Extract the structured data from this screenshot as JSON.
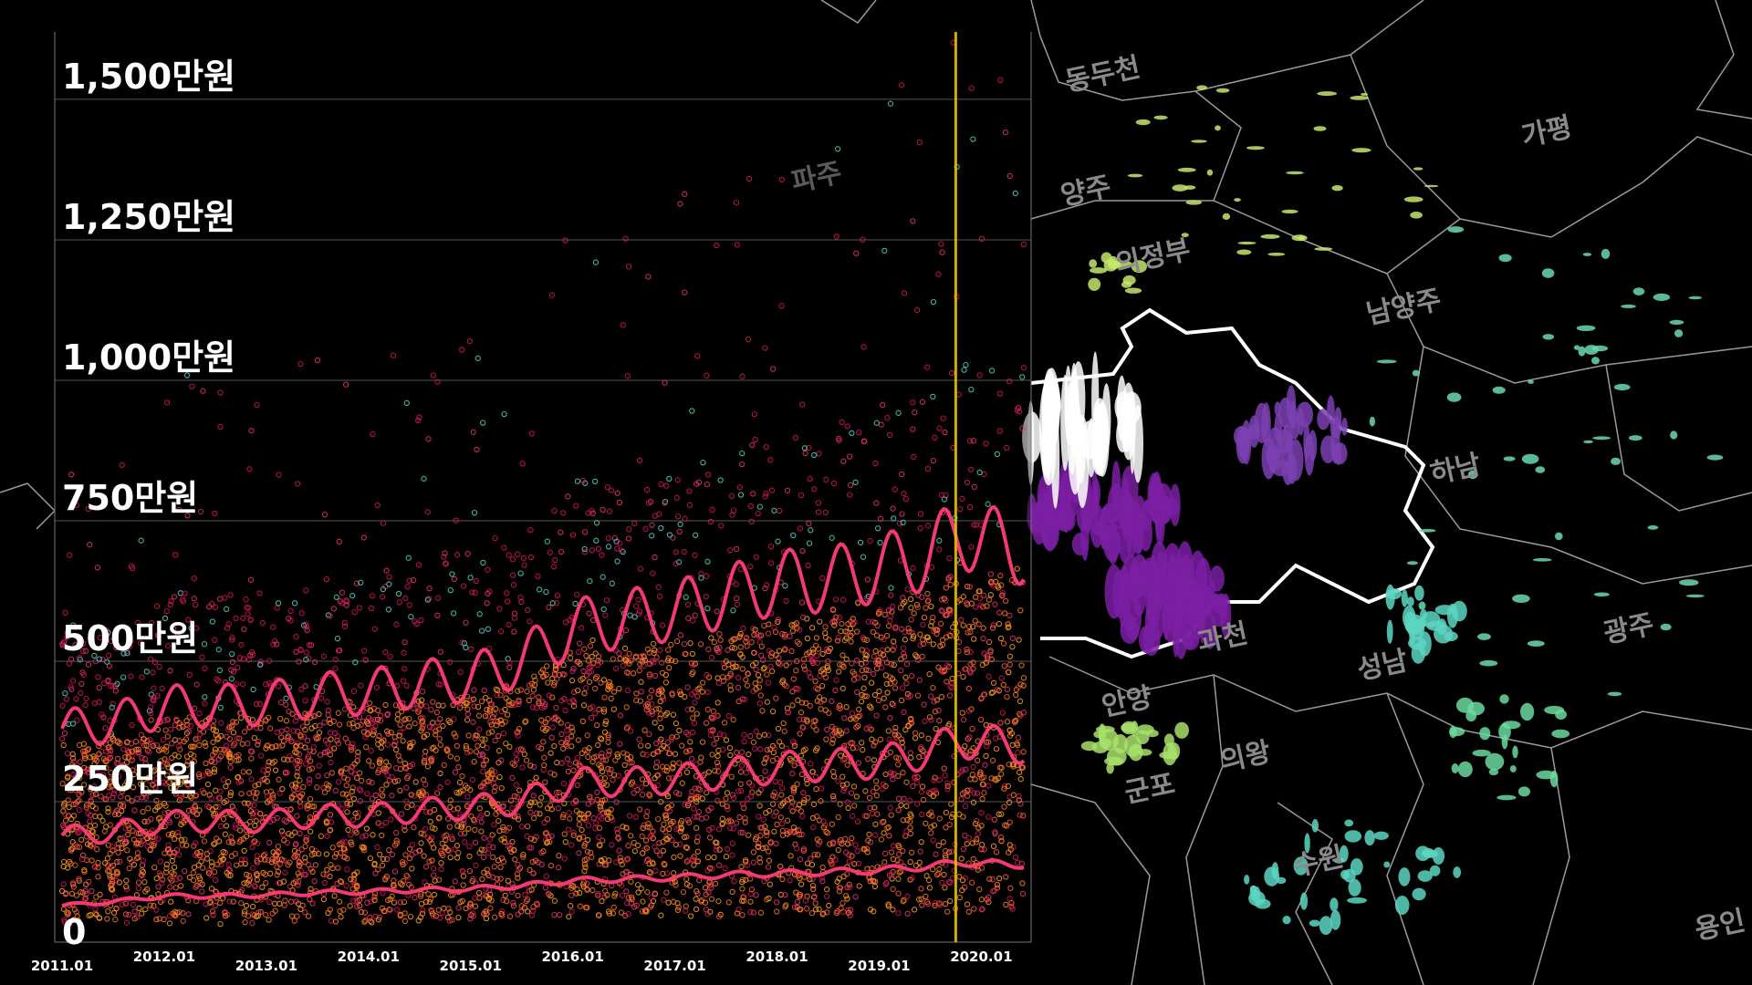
{
  "chart_data": {
    "type": "scatter",
    "title": "",
    "xlabel": "",
    "ylabel": "",
    "x_ticks": [
      "2011.01",
      "2012.01",
      "2013.01",
      "2014.01",
      "2015.01",
      "2016.01",
      "2017.01",
      "2018.01",
      "2019.01",
      "2020.01"
    ],
    "y_ticks": [
      {
        "value": 0,
        "label": "0"
      },
      {
        "value": 250,
        "label": "250만원"
      },
      {
        "value": 500,
        "label": "500만원"
      },
      {
        "value": 750,
        "label": "750만원"
      },
      {
        "value": 1000,
        "label": "1,000만원"
      },
      {
        "value": 1250,
        "label": "1,250만원"
      },
      {
        "value": 1500,
        "label": "1,500만원"
      }
    ],
    "ylim": [
      0,
      1620
    ],
    "xlim": [
      "2011.01",
      "2020.06"
    ],
    "grid": true,
    "highlight_x": "2019.10",
    "series": [
      {
        "values": [
          [
            2011.0,
            380
          ],
          [
            2011.5,
            390
          ],
          [
            2012.0,
            420
          ],
          [
            2012.5,
            420
          ],
          [
            2013.0,
            425
          ],
          [
            2013.5,
            440
          ],
          [
            2014.0,
            445
          ],
          [
            2014.5,
            460
          ],
          [
            2015.0,
            470
          ],
          [
            2015.5,
            500
          ],
          [
            2016.0,
            560
          ],
          [
            2016.5,
            575
          ],
          [
            2017.0,
            590
          ],
          [
            2017.5,
            615
          ],
          [
            2018.0,
            640
          ],
          [
            2018.5,
            645
          ],
          [
            2019.0,
            665
          ],
          [
            2019.5,
            690
          ],
          [
            2019.8,
            730
          ],
          [
            2020.3,
            700
          ]
        ]
      },
      {
        "values": [
          [
            2011.0,
            190
          ],
          [
            2011.5,
            195
          ],
          [
            2012.0,
            215
          ],
          [
            2012.5,
            215
          ],
          [
            2013.0,
            215
          ],
          [
            2013.5,
            225
          ],
          [
            2014.0,
            225
          ],
          [
            2014.5,
            235
          ],
          [
            2015.0,
            240
          ],
          [
            2015.5,
            250
          ],
          [
            2016.0,
            285
          ],
          [
            2016.5,
            285
          ],
          [
            2017.0,
            290
          ],
          [
            2017.5,
            300
          ],
          [
            2018.0,
            310
          ],
          [
            2018.5,
            315
          ],
          [
            2019.0,
            320
          ],
          [
            2019.5,
            340
          ],
          [
            2019.8,
            360
          ],
          [
            2020.3,
            350
          ]
        ]
      },
      {
        "values": [
          [
            2011.0,
            65
          ],
          [
            2011.5,
            72
          ],
          [
            2012.0,
            82
          ],
          [
            2012.5,
            82
          ],
          [
            2013.0,
            84
          ],
          [
            2013.5,
            88
          ],
          [
            2014.0,
            90
          ],
          [
            2014.5,
            93
          ],
          [
            2015.0,
            95
          ],
          [
            2015.5,
            100
          ],
          [
            2016.0,
            110
          ],
          [
            2016.5,
            112
          ],
          [
            2017.0,
            115
          ],
          [
            2017.5,
            120
          ],
          [
            2018.0,
            122
          ],
          [
            2018.5,
            125
          ],
          [
            2019.0,
            128
          ],
          [
            2019.5,
            135
          ],
          [
            2019.8,
            142
          ],
          [
            2020.3,
            138
          ]
        ]
      }
    ],
    "point_colors": [
      "#ff9f1c",
      "#ff8a1a",
      "#f7751e",
      "#e8326a",
      "#d4145a",
      "#ff5a36",
      "#4fd1c5"
    ],
    "line_color": "#ff3c78",
    "highlight_color": "#e6c100"
  },
  "map": {
    "labels": [
      "동두천",
      "양주",
      "가평",
      "의정부",
      "남양주",
      "하남",
      "과천",
      "성남",
      "광주",
      "안양",
      "의왕",
      "군포",
      "수원",
      "용인",
      "파주"
    ]
  }
}
